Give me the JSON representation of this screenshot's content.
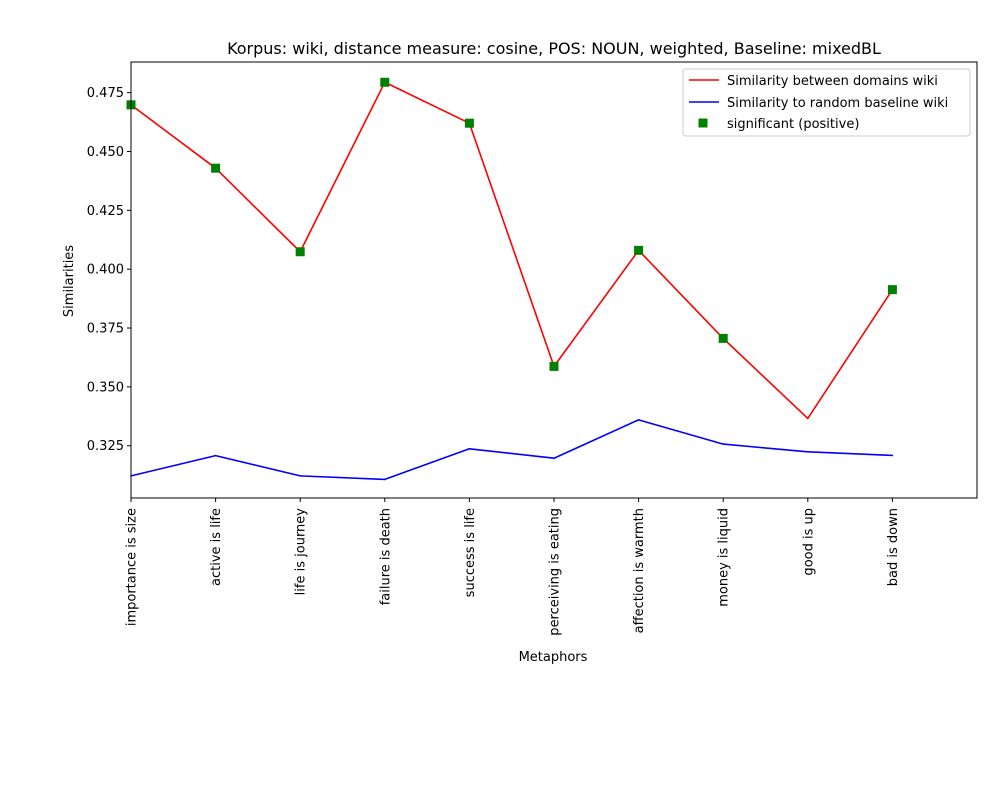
{
  "chart_data": {
    "type": "line",
    "title": "Korpus: wiki, distance measure: cosine, POS: NOUN, weighted, Baseline: mixedBL",
    "xlabel": "Metaphors",
    "ylabel": "Similarities",
    "categories": [
      "importance is size",
      "active is life",
      "life is journey",
      "failure is death",
      "success is life",
      "perceiving is eating",
      "affection is warmth",
      "money is liquid",
      "good is up",
      "bad is down"
    ],
    "ylim": [
      0.3028,
      0.488
    ],
    "yticks": [
      "0.325",
      "0.350",
      "0.375",
      "0.400",
      "0.425",
      "0.450",
      "0.475"
    ],
    "grid": false,
    "legend_position": "top-right",
    "series": [
      {
        "name": "Similarity between domains wiki",
        "style": "line",
        "color": "#ff0000",
        "values": [
          0.4698,
          0.4429,
          0.4074,
          0.4794,
          0.462,
          0.3587,
          0.408,
          0.3706,
          0.3366,
          0.3913
        ]
      },
      {
        "name": "Similarity to random baseline wiki",
        "style": "line",
        "color": "#0000ff",
        "values": [
          0.3122,
          0.3208,
          0.3122,
          0.3107,
          0.3237,
          0.3197,
          0.336,
          0.3257,
          0.3224,
          0.3209
        ]
      },
      {
        "name": "significant (positive)",
        "style": "marker",
        "color": "#008000",
        "values": [
          0.4698,
          0.4429,
          0.4074,
          0.4794,
          0.462,
          0.3587,
          0.408,
          0.3706,
          null,
          0.3913
        ]
      }
    ]
  }
}
